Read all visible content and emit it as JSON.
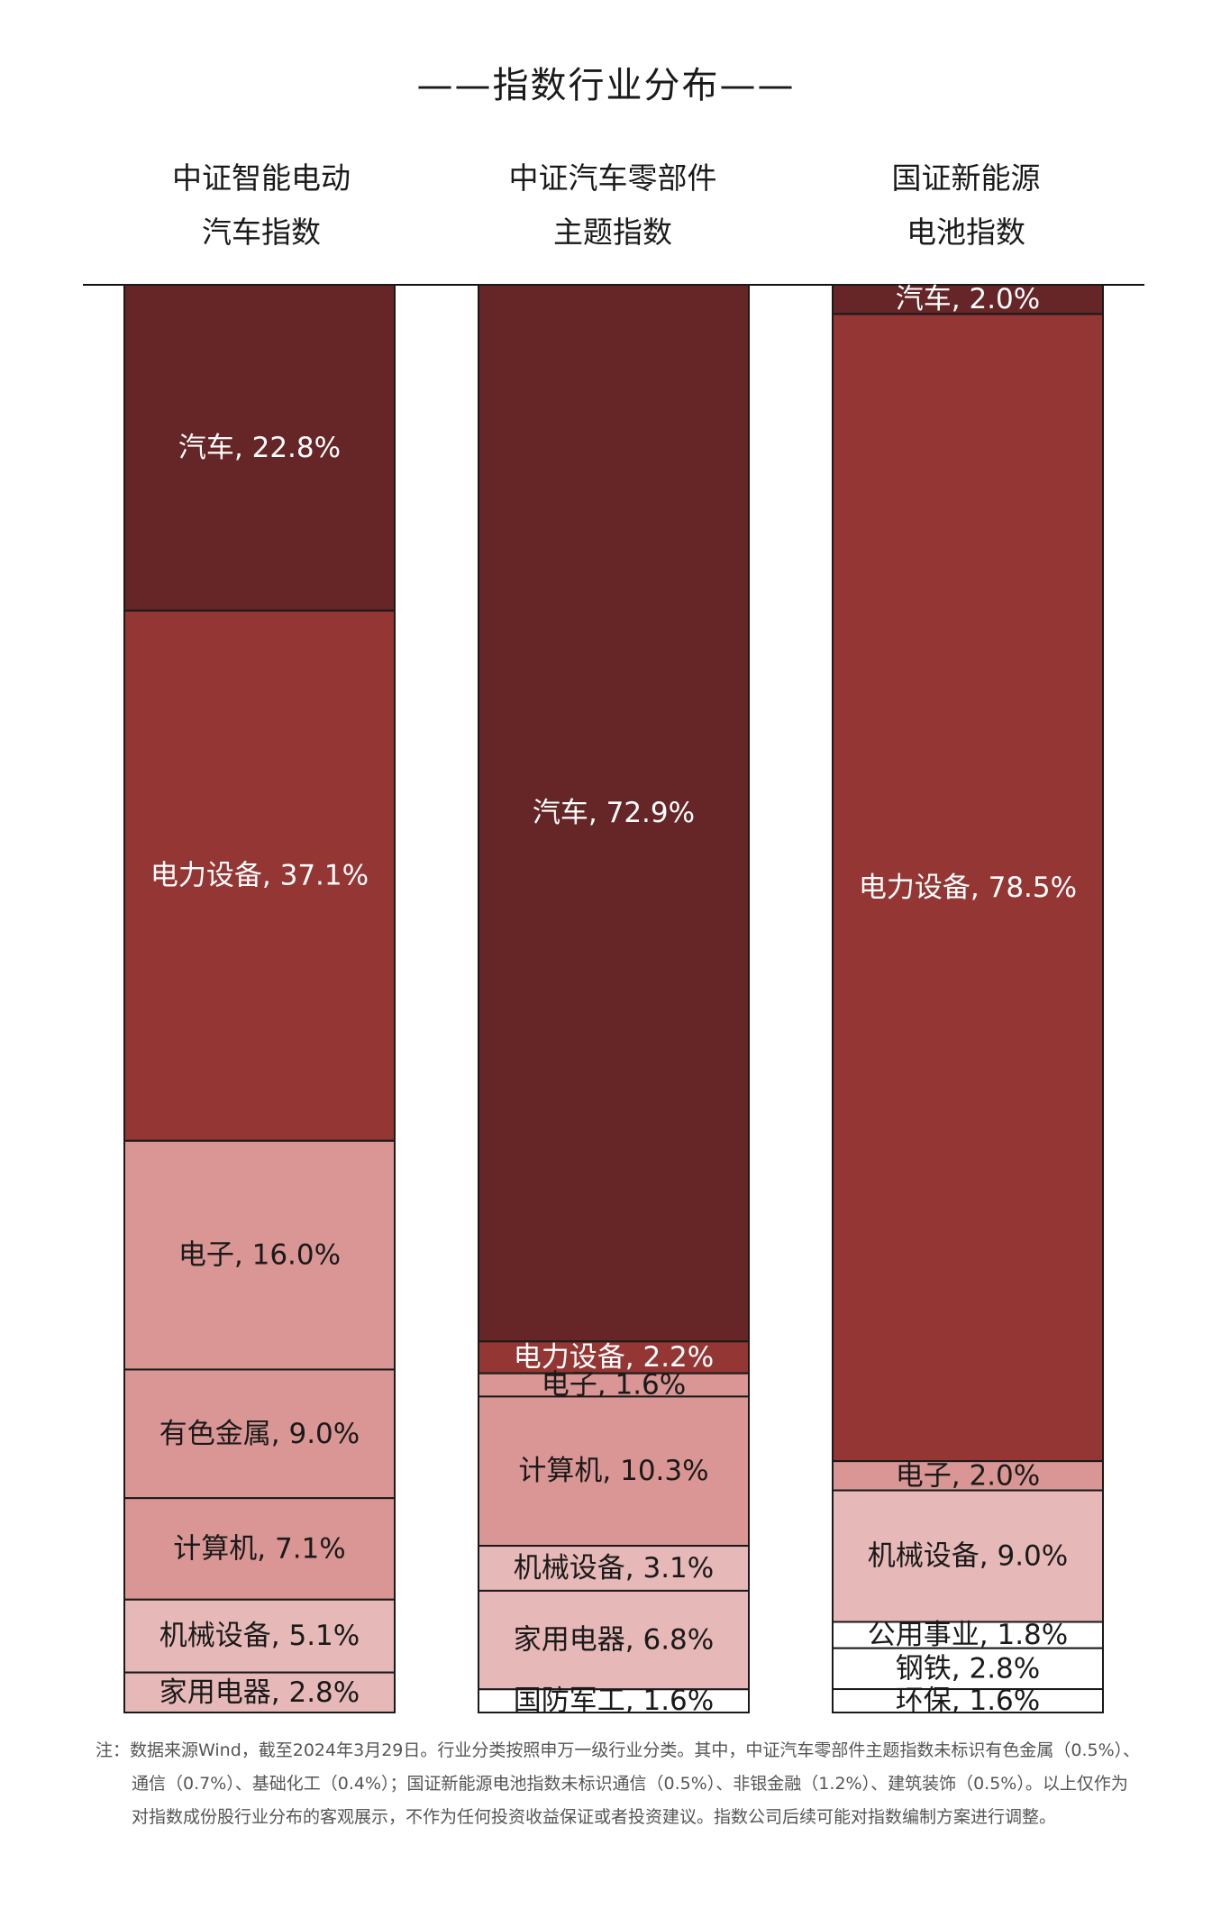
{
  "title": "——指数行业分布——",
  "columns": [
    {
      "line1": "中证智能电动",
      "line2": "汽车指数"
    },
    {
      "line1": "中证汽车零部件",
      "line2": "主题指数"
    },
    {
      "line1": "国证新能源",
      "line2": "电池指数"
    }
  ],
  "note": "注：数据来源Wind，截至2024年3月29日。行业分类按照申万一级行业分类。其中，中证汽车零部件主题指数未标识有色金属（0.5%）、通信（0.7%）、基础化工（0.4%）；国证新能源电池指数未标识通信（0.5%）、非银金融（1.2%）、建筑装饰（0.5%）。以上仅作为对指数成份股行业分布的客观展示，不作为任何投资收益保证或者投资建议。指数公司后续可能对指数编制方案进行调整。",
  "colors": {
    "dark": "#662527",
    "red": "#943634",
    "pink": "#d99694",
    "light": "#e6b9b8",
    "white": "#ffffff"
  },
  "chart_data": {
    "type": "bar",
    "stacked": true,
    "percent": true,
    "categories": [
      "中证智能电动汽车指数",
      "中证汽车零部件主题指数",
      "国证新能源电池指数"
    ],
    "bars": [
      {
        "segments": [
          {
            "name": "汽车",
            "value": 22.8,
            "color": "dark"
          },
          {
            "name": "电力设备",
            "value": 37.1,
            "color": "red"
          },
          {
            "name": "电子",
            "value": 16.0,
            "color": "pink"
          },
          {
            "name": "有色金属",
            "value": 9.0,
            "color": "pink"
          },
          {
            "name": "计算机",
            "value": 7.1,
            "color": "pink"
          },
          {
            "name": "机械设备",
            "value": 5.1,
            "color": "light"
          },
          {
            "name": "家用电器",
            "value": 2.8,
            "color": "light"
          }
        ]
      },
      {
        "segments": [
          {
            "name": "汽车",
            "value": 72.9,
            "color": "dark"
          },
          {
            "name": "电力设备",
            "value": 2.2,
            "color": "red"
          },
          {
            "name": "电子",
            "value": 1.6,
            "color": "pink"
          },
          {
            "name": "计算机",
            "value": 10.3,
            "color": "pink"
          },
          {
            "name": "机械设备",
            "value": 3.1,
            "color": "light"
          },
          {
            "name": "家用电器",
            "value": 6.8,
            "color": "light"
          },
          {
            "name": "国防军工",
            "value": 1.6,
            "color": "white"
          }
        ]
      },
      {
        "segments": [
          {
            "name": "汽车",
            "value": 2.0,
            "color": "dark"
          },
          {
            "name": "电力设备",
            "value": 78.5,
            "color": "red"
          },
          {
            "name": "电子",
            "value": 2.0,
            "color": "pink"
          },
          {
            "name": "机械设备",
            "value": 9.0,
            "color": "light"
          },
          {
            "name": "公用事业",
            "value": 1.8,
            "color": "white"
          },
          {
            "name": "钢铁",
            "value": 2.8,
            "color": "white"
          },
          {
            "name": "环保",
            "value": 1.6,
            "color": "white"
          }
        ]
      }
    ]
  }
}
